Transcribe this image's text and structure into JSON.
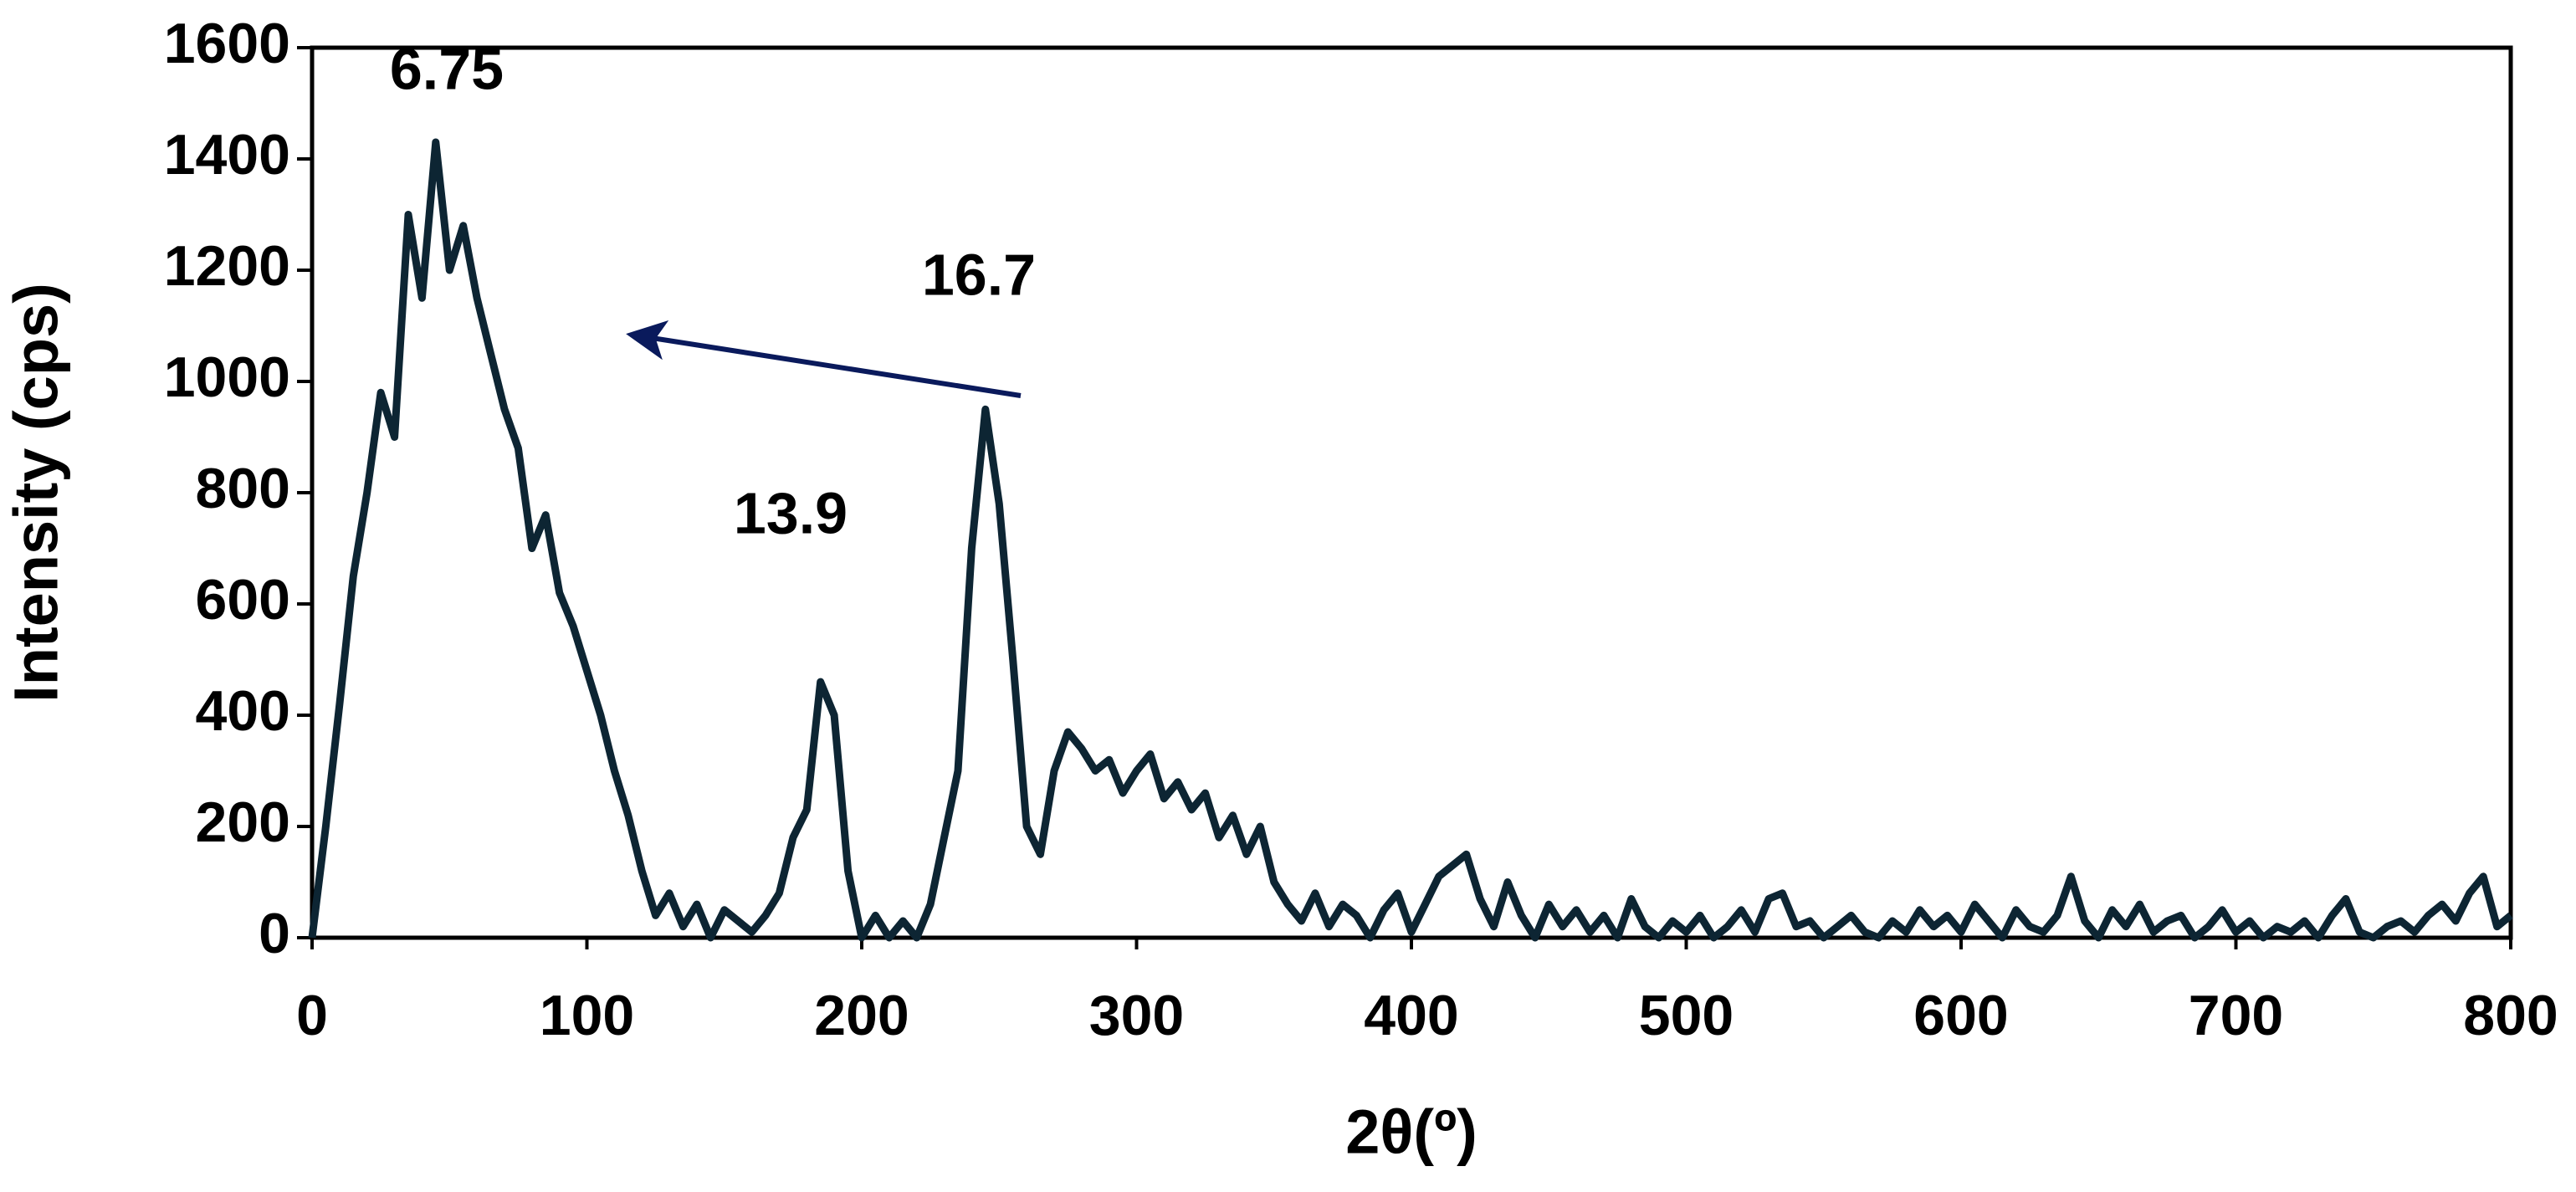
{
  "chart_data": {
    "type": "line",
    "x_label": "2θ(º)",
    "y_label": "Intensity (cps)",
    "annotations": [
      "6.75",
      "16.7",
      "13.9"
    ],
    "color": "#0d2533",
    "xlim": [
      0,
      800
    ],
    "xticks": [
      0,
      100,
      200,
      300,
      400,
      500,
      600,
      700,
      800
    ],
    "ylim": [
      0,
      1600
    ],
    "yticks": [
      0,
      200,
      400,
      600,
      800,
      1000,
      1200,
      1400,
      1600
    ],
    "x": [
      0,
      5,
      10,
      15,
      20,
      25,
      30,
      35,
      40,
      45,
      50,
      55,
      60,
      65,
      70,
      75,
      80,
      85,
      90,
      95,
      100,
      105,
      110,
      115,
      120,
      125,
      130,
      135,
      140,
      145,
      150,
      155,
      160,
      165,
      170,
      175,
      180,
      185,
      190,
      195,
      200,
      205,
      210,
      215,
      220,
      225,
      230,
      235,
      240,
      245,
      250,
      255,
      260,
      265,
      270,
      275,
      280,
      285,
      290,
      295,
      300,
      305,
      310,
      315,
      320,
      325,
      330,
      335,
      340,
      345,
      350,
      355,
      360,
      365,
      370,
      375,
      380,
      385,
      390,
      395,
      400,
      405,
      410,
      415,
      420,
      425,
      430,
      435,
      440,
      445,
      450,
      455,
      460,
      465,
      470,
      475,
      480,
      485,
      490,
      495,
      500,
      505,
      510,
      515,
      520,
      525,
      530,
      535,
      540,
      545,
      550,
      555,
      560,
      565,
      570,
      575,
      580,
      585,
      590,
      595,
      600,
      605,
      610,
      615,
      620,
      625,
      630,
      635,
      640,
      645,
      650,
      655,
      660,
      665,
      670,
      675,
      680,
      685,
      690,
      695,
      700,
      705,
      710,
      715,
      720,
      725,
      730,
      735,
      740,
      745,
      750,
      755,
      760,
      765,
      770,
      775,
      780,
      785,
      790,
      795,
      800
    ],
    "values": [
      0,
      200,
      420,
      650,
      800,
      980,
      900,
      1300,
      1150,
      1430,
      1200,
      1280,
      1150,
      1050,
      950,
      880,
      700,
      760,
      620,
      560,
      480,
      400,
      300,
      220,
      120,
      40,
      80,
      20,
      60,
      0,
      50,
      30,
      10,
      40,
      80,
      180,
      230,
      460,
      400,
      120,
      0,
      40,
      0,
      30,
      0,
      60,
      180,
      300,
      700,
      950,
      780,
      500,
      200,
      150,
      300,
      370,
      340,
      300,
      320,
      260,
      300,
      330,
      250,
      280,
      230,
      260,
      180,
      220,
      150,
      200,
      100,
      60,
      30,
      80,
      20,
      60,
      40,
      0,
      50,
      80,
      10,
      60,
      110,
      130,
      150,
      70,
      20,
      100,
      40,
      0,
      60,
      20,
      50,
      10,
      40,
      0,
      70,
      20,
      0,
      30,
      10,
      40,
      0,
      20,
      50,
      10,
      70,
      80,
      20,
      30,
      0,
      20,
      40,
      10,
      0,
      30,
      10,
      50,
      20,
      40,
      10,
      60,
      30,
      0,
      50,
      20,
      10,
      40,
      110,
      30,
      0,
      50,
      20,
      60,
      10,
      30,
      40,
      0,
      20,
      50,
      10,
      30,
      0,
      20,
      10,
      30,
      0,
      40,
      70,
      10,
      0,
      20,
      30,
      10,
      40,
      60,
      30,
      80,
      110,
      20,
      40
    ]
  }
}
